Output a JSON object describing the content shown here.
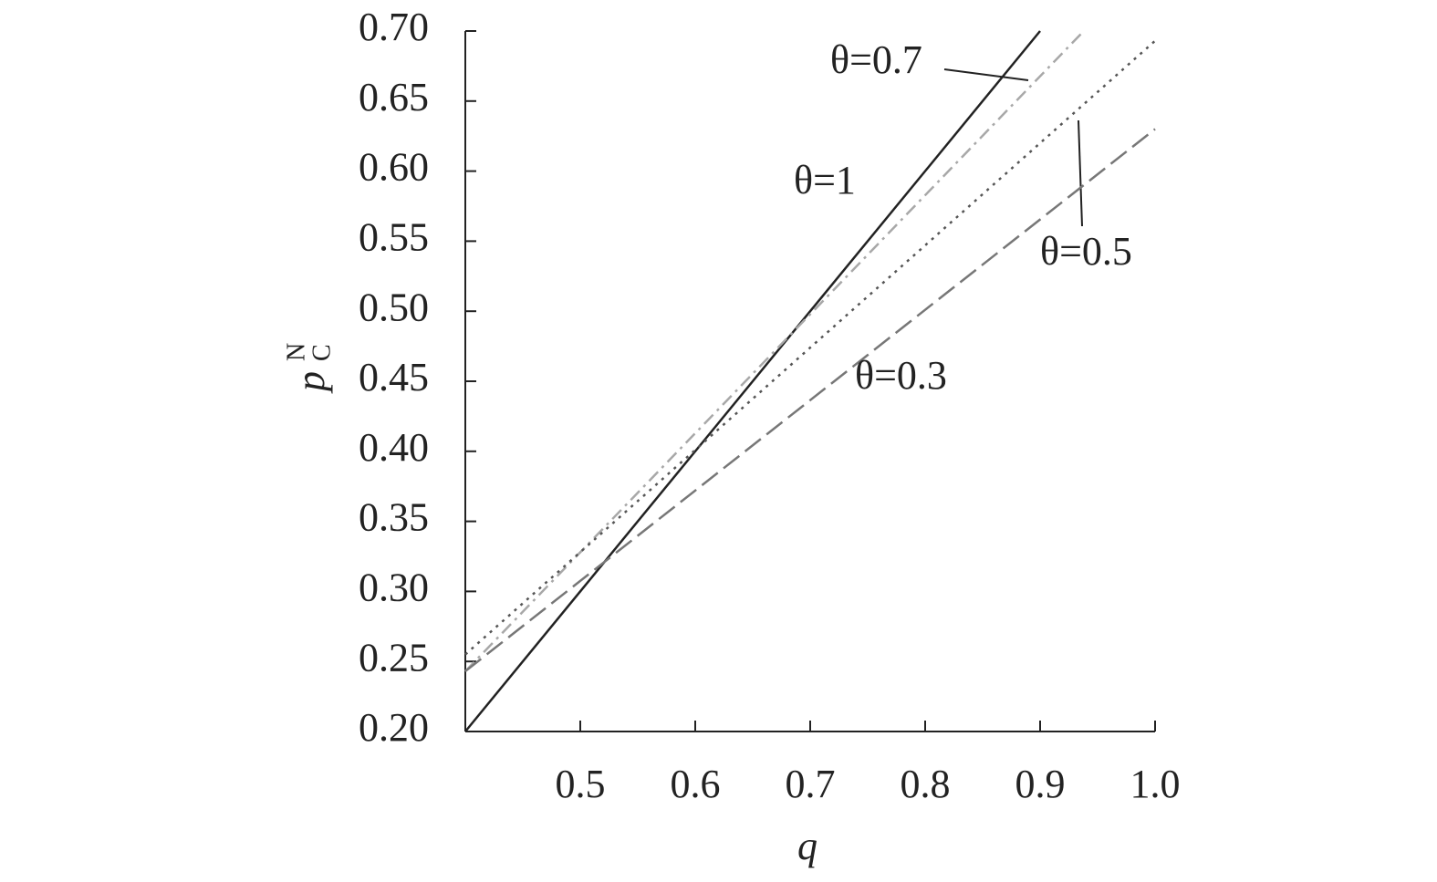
{
  "chart_data": {
    "type": "line",
    "xlabel": "q",
    "ylabel": "p",
    "ylabel_sup": "N",
    "ylabel_sub": "C",
    "xlim": [
      0.4,
      1.0
    ],
    "ylim": [
      0.2,
      0.7
    ],
    "xticks": [
      0.5,
      0.6,
      0.7,
      0.8,
      0.9,
      {
        "value": 1.0,
        "label": "1.0"
      }
    ],
    "yticks": [
      {
        "value": 0.2,
        "label": "0.20"
      },
      {
        "value": 0.25,
        "label": "0.25"
      },
      {
        "value": 0.3,
        "label": "0.30"
      },
      {
        "value": 0.35,
        "label": "0.35"
      },
      {
        "value": 0.4,
        "label": "0.40"
      },
      {
        "value": 0.45,
        "label": "0.45"
      },
      {
        "value": 0.5,
        "label": "0.50"
      },
      {
        "value": 0.55,
        "label": "0.55"
      },
      {
        "value": 0.6,
        "label": "0.60"
      },
      {
        "value": 0.65,
        "label": "0.65"
      },
      {
        "value": 0.7,
        "label": "0.70"
      }
    ],
    "series": [
      {
        "name": "θ=1",
        "color": "#222222",
        "style": "solid",
        "x": [
          0.4,
          0.9
        ],
        "values": [
          0.2,
          0.7
        ]
      },
      {
        "name": "θ=0.7",
        "color": "#a8a8a8",
        "style": "dashdot",
        "x": [
          0.4,
          0.938
        ],
        "values": [
          0.243,
          0.7
        ]
      },
      {
        "name": "θ=0.5",
        "color": "#555555",
        "style": "dotted",
        "x": [
          0.4,
          1.0
        ],
        "values": [
          0.255,
          0.693
        ]
      },
      {
        "name": "θ=0.3",
        "color": "#777777",
        "style": "dashed",
        "x": [
          0.4,
          1.0
        ],
        "values": [
          0.243,
          0.63
        ]
      }
    ]
  }
}
